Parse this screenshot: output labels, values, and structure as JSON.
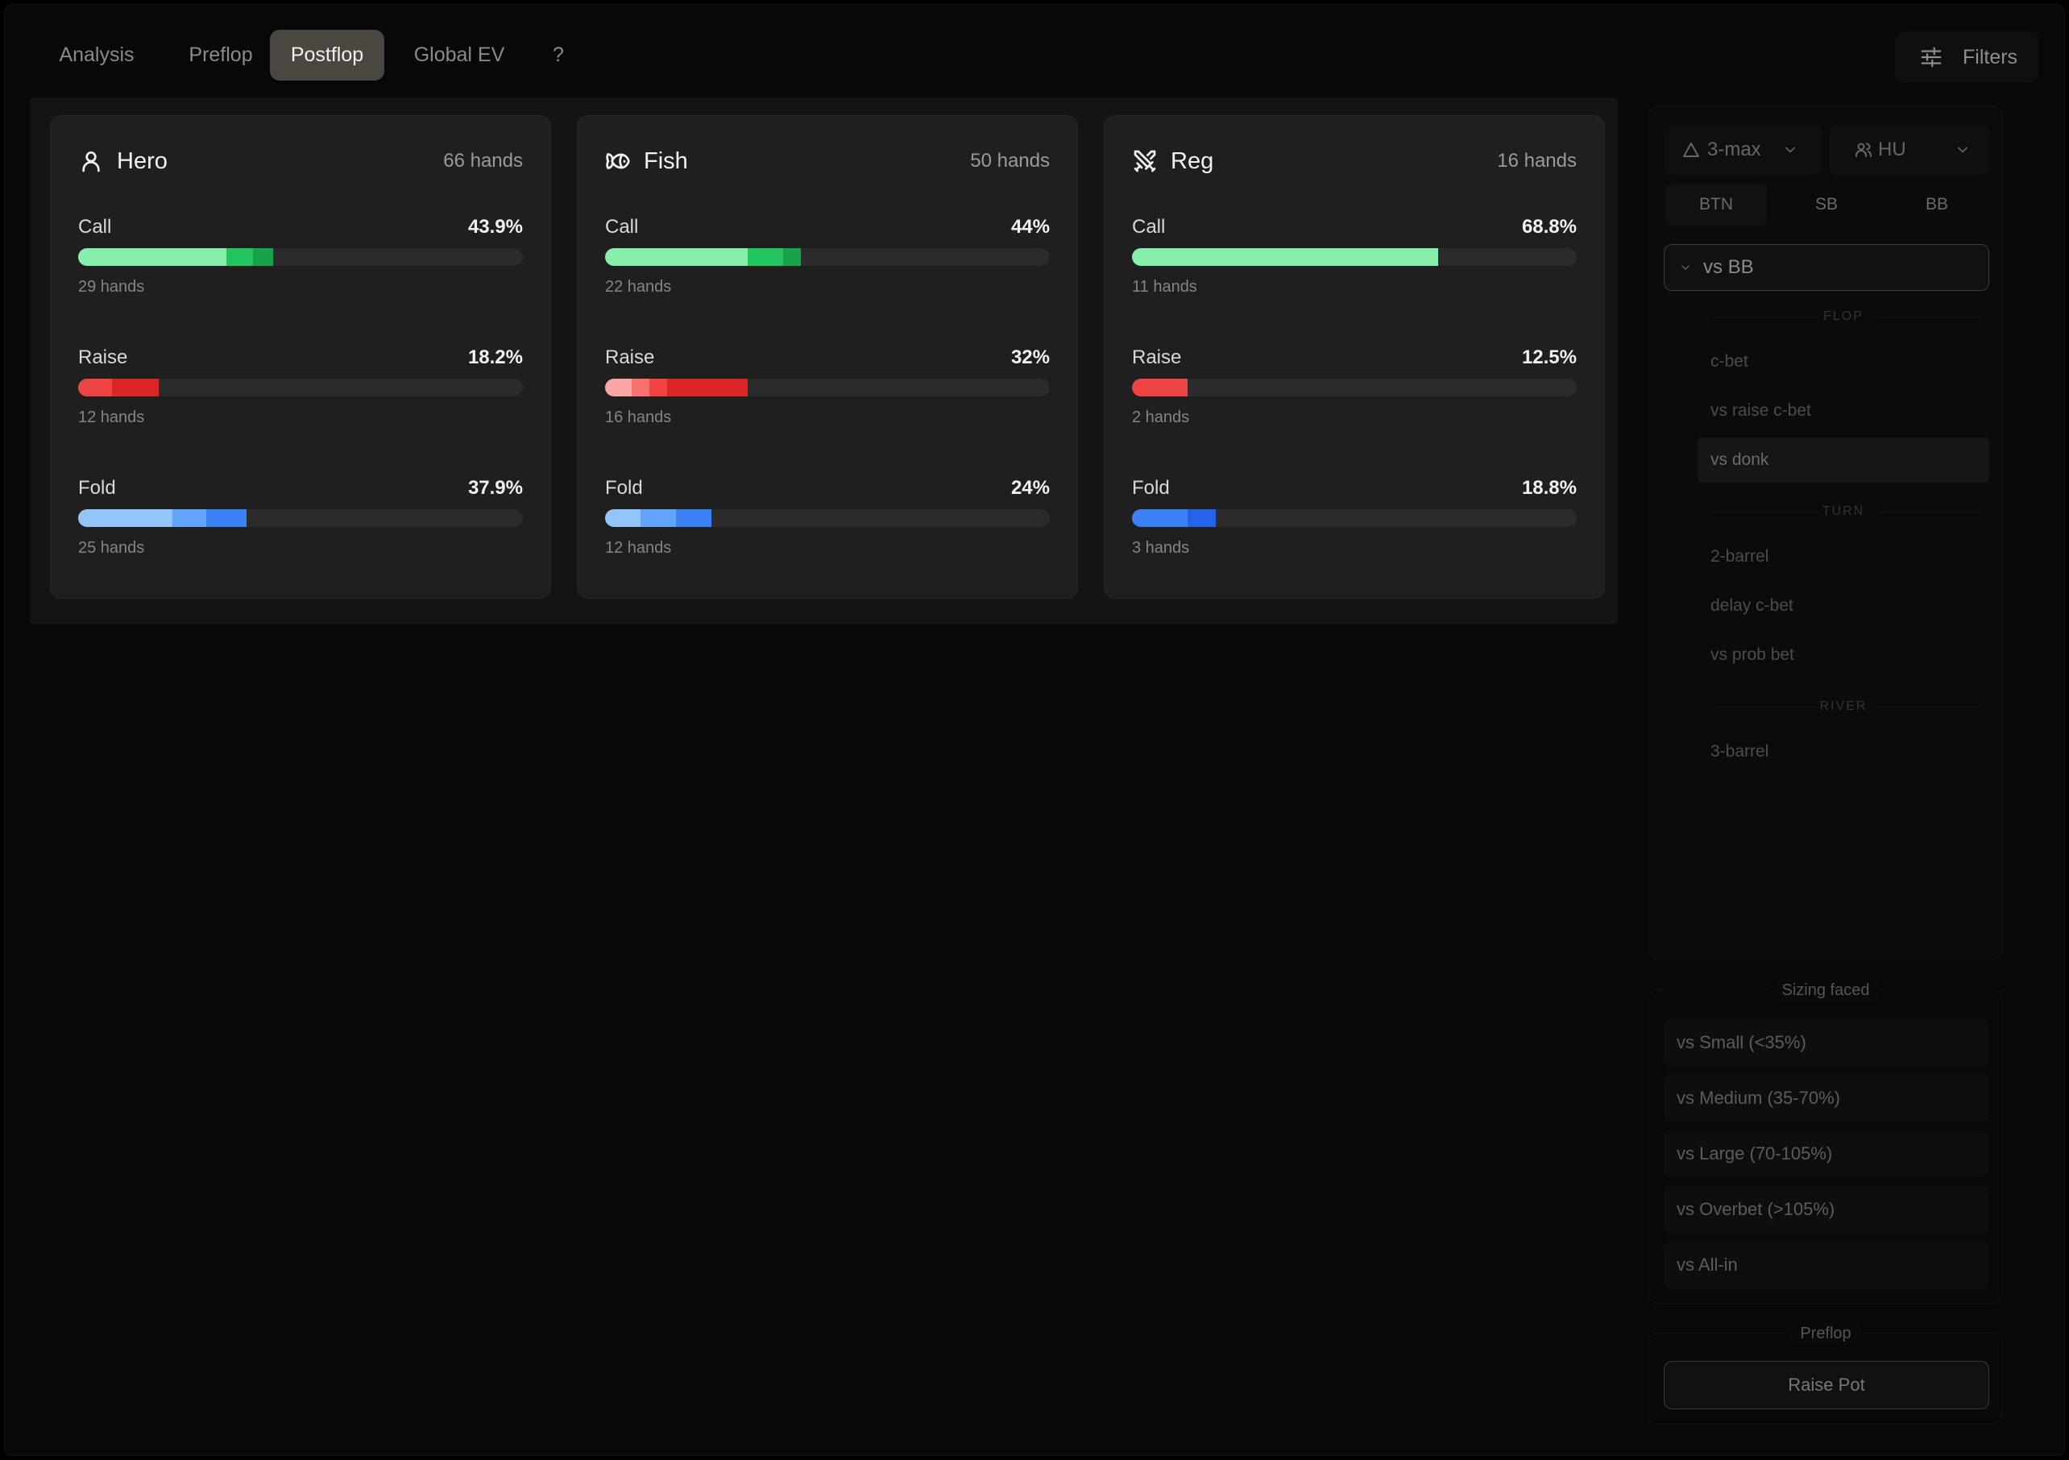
{
  "nav": {
    "tabs": [
      {
        "label": "Analysis"
      },
      {
        "label": "Preflop"
      },
      {
        "label": "Postflop"
      },
      {
        "label": "Global EV"
      },
      {
        "label": "?"
      }
    ],
    "active_tab": "Postflop",
    "filters_label": "Filters"
  },
  "cards": [
    {
      "title": "Hero",
      "icon": "user-icon",
      "hands": "66 hands",
      "stats": [
        {
          "label": "Call",
          "pct": "43.9%",
          "hands": "29 hands",
          "segments": [
            {
              "value": 33.3,
              "color": "#86efac"
            },
            {
              "value": 6,
              "color": "#22c55e"
            },
            {
              "value": 4.6,
              "color": "#16a34a"
            }
          ]
        },
        {
          "label": "Raise",
          "pct": "18.2%",
          "hands": "12 hands",
          "segments": [
            {
              "value": 7.6,
              "color": "#ef4444"
            },
            {
              "value": 10.6,
              "color": "#dc2626"
            }
          ]
        },
        {
          "label": "Fold",
          "pct": "37.9%",
          "hands": "25 hands",
          "segments": [
            {
              "value": 21.2,
              "color": "#93c5fd"
            },
            {
              "value": 7.6,
              "color": "#60a5fa"
            },
            {
              "value": 9.1,
              "color": "#3b82f6"
            }
          ]
        }
      ]
    },
    {
      "title": "Fish",
      "icon": "fish-icon",
      "hands": "50 hands",
      "stats": [
        {
          "label": "Call",
          "pct": "44%",
          "hands": "22 hands",
          "segments": [
            {
              "value": 32,
              "color": "#86efac"
            },
            {
              "value": 8,
              "color": "#22c55e"
            },
            {
              "value": 4,
              "color": "#16a34a"
            }
          ]
        },
        {
          "label": "Raise",
          "pct": "32%",
          "hands": "16 hands",
          "segments": [
            {
              "value": 6,
              "color": "#fca5a5"
            },
            {
              "value": 4,
              "color": "#f87171"
            },
            {
              "value": 4,
              "color": "#ef4444"
            },
            {
              "value": 18,
              "color": "#dc2626"
            }
          ]
        },
        {
          "label": "Fold",
          "pct": "24%",
          "hands": "12 hands",
          "segments": [
            {
              "value": 8,
              "color": "#93c5fd"
            },
            {
              "value": 8,
              "color": "#60a5fa"
            },
            {
              "value": 8,
              "color": "#3b82f6"
            }
          ]
        }
      ]
    },
    {
      "title": "Reg",
      "icon": "swords-icon",
      "hands": "16 hands",
      "stats": [
        {
          "label": "Call",
          "pct": "68.8%",
          "hands": "11 hands",
          "segments": [
            {
              "value": 68.8,
              "color": "#86efac"
            }
          ]
        },
        {
          "label": "Raise",
          "pct": "12.5%",
          "hands": "2 hands",
          "segments": [
            {
              "value": 12.5,
              "color": "#ef4444"
            }
          ]
        },
        {
          "label": "Fold",
          "pct": "18.8%",
          "hands": "3 hands",
          "segments": [
            {
              "value": 12.5,
              "color": "#3b82f6"
            },
            {
              "value": 6.3,
              "color": "#2563eb"
            }
          ]
        }
      ]
    }
  ],
  "sidebar": {
    "table_size": "3-max",
    "players": "HU",
    "positions": [
      "BTN",
      "SB",
      "BB"
    ],
    "active_position": "BTN",
    "vs_label": "vs BB",
    "sections": [
      {
        "title": "FLOP",
        "items": [
          "c-bet",
          "vs raise c-bet",
          "vs donk"
        ]
      },
      {
        "title": "TURN",
        "items": [
          "2-barrel",
          "delay c-bet",
          "vs prob bet"
        ]
      },
      {
        "title": "RIVER",
        "items": [
          "3-barrel"
        ]
      }
    ],
    "active_item": "vs donk"
  },
  "sizing": {
    "title": "Sizing faced",
    "items": [
      "vs Small (<35%)",
      "vs Medium (35-70%)",
      "vs Large (70-105%)",
      "vs Overbet (>105%)",
      "vs All-in"
    ]
  },
  "preflop": {
    "title": "Preflop",
    "button": "Raise Pot"
  }
}
